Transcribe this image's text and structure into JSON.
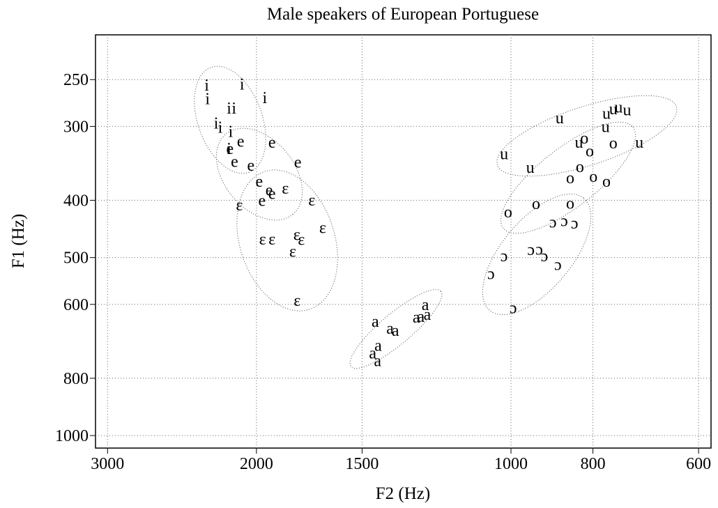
{
  "chart_data": {
    "type": "scatter",
    "title": "Male speakers of European Portuguese",
    "x_label": "F2 (Hz)",
    "y_label": "F1 (Hz)",
    "log_x": true,
    "log_y": true,
    "x_reversed": true,
    "y_reversed": true,
    "grid": true,
    "xlim": [
      3100,
      580
    ],
    "ylim": [
      1050,
      210
    ],
    "xticks": [
      3000,
      2000,
      1500,
      1000,
      800,
      600
    ],
    "yticks": [
      250,
      300,
      400,
      500,
      600,
      800,
      1000
    ],
    "series": [
      {
        "name": "i",
        "color": "#000000",
        "x": [
          2290,
          2285,
          2080,
          1955,
          2155,
          2126,
          2232,
          2207,
          2145,
          2155
        ],
        "values": [
          257,
          271,
          256,
          270,
          281,
          281,
          298,
          303,
          308,
          329
        ]
      },
      {
        "name": "e",
        "color": "#000000",
        "x": [
          2088,
          1917,
          2150,
          2123,
          2031,
          1787,
          1985,
          1932,
          1970,
          1917
        ],
        "values": [
          320,
          321,
          329,
          346,
          351,
          347,
          374,
          387,
          403,
          392
        ]
      },
      {
        "name": "ɛ",
        "color": "#000000",
        "x": [
          1849,
          2095,
          1720,
          1670,
          1967,
          1917,
          1792,
          1770,
          1812,
          1790
        ],
        "values": [
          384,
          410,
          402,
          448,
          468,
          468,
          460,
          469,
          491,
          595
        ]
      },
      {
        "name": "a",
        "color": "#000000",
        "x": [
          1447,
          1390,
          1370,
          1294,
          1278,
          1263,
          1256,
          1436,
          1457,
          1438
        ],
        "values": [
          645,
          663,
          668,
          635,
          633,
          604,
          628,
          708,
          730,
          752
        ]
      },
      {
        "name": "u",
        "color": "#000000",
        "x": [
          1019,
          949,
          876,
          831,
          773,
          771,
          757,
          746,
          729,
          705
        ],
        "values": [
          336,
          354,
          292,
          321,
          302,
          287,
          282,
          280,
          283,
          321
        ]
      },
      {
        "name": "o",
        "color": "#000000",
        "x": [
          819,
          807,
          757,
          829,
          851,
          799,
          771,
          1008,
          934,
          851
        ],
        "values": [
          316,
          332,
          322,
          353,
          369,
          367,
          374,
          421,
          408,
          407
        ]
      },
      {
        "name": "ɔ",
        "color": "#000000",
        "x": [
          892,
          865,
          841,
          947,
          926,
          913,
          1019,
          880,
          1056,
          994
        ],
        "values": [
          438,
          436,
          440,
          488,
          487,
          500,
          500,
          517,
          536,
          612
        ]
      }
    ]
  }
}
